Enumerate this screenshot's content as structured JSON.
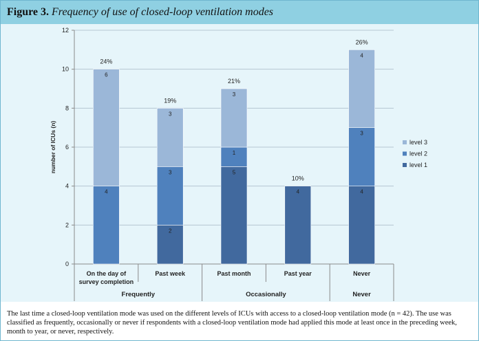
{
  "figure": {
    "label": "Figure 3.",
    "title": "Frequency of use of closed-loop ventilation modes"
  },
  "caption": "The last time a closed-loop ventilation mode was used on the different levels of ICUs with access to a closed-loop ventilation mode (n = 42). The use was classified as frequently, occasionally or never if respondents with a closed-loop ventilation mode had applied this mode at least once in the preceding week, month to year, or never, respectively.",
  "colors": {
    "level 1": "#41699e",
    "level 2": "#4f81bd",
    "level 3": "#9bb7d8",
    "header": "#8fd0e2",
    "plot_background": "#e6f5fa"
  },
  "chart_data": {
    "type": "bar",
    "stacked": true,
    "categories": [
      "On the day of survey completion",
      "Past week",
      "Past month",
      "Past year",
      "Never"
    ],
    "category_label_lines": [
      [
        "On the day of",
        "survey completion"
      ],
      [
        "Past week"
      ],
      [
        "Past month"
      ],
      [
        "Past year"
      ],
      [
        "Never"
      ]
    ],
    "groups": [
      {
        "label": "Frequently",
        "categories": [
          "On the day of survey completion",
          "Past week"
        ]
      },
      {
        "label": "Occasionally",
        "categories": [
          "Past month",
          "Past year"
        ]
      },
      {
        "label": "Never",
        "categories": [
          "Never"
        ]
      }
    ],
    "series": [
      {
        "name": "level 1",
        "values": [
          0,
          2,
          5,
          4,
          4
        ]
      },
      {
        "name": "level 2",
        "values": [
          4,
          3,
          1,
          0,
          3
        ]
      },
      {
        "name": "level 3",
        "values": [
          6,
          3,
          3,
          0,
          4
        ]
      }
    ],
    "totals_percent": [
      "24%",
      "19%",
      "21%",
      "10%",
      "26%"
    ],
    "ylabel": "number of ICUs (n)",
    "ylim": [
      0,
      12
    ],
    "yticks": [
      0,
      2,
      4,
      6,
      8,
      10,
      12
    ],
    "grid": true,
    "legend": {
      "position": "right",
      "order": [
        "level 3",
        "level 2",
        "level 1"
      ]
    }
  }
}
